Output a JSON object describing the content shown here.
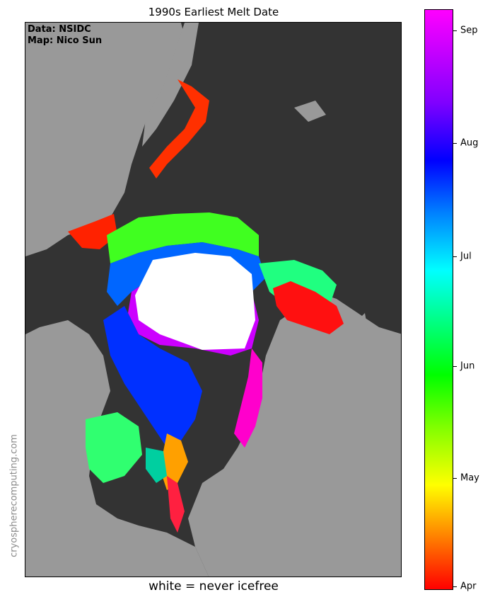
{
  "title": "1990s Earliest Melt Date",
  "credits": {
    "data": "Data: NSIDC",
    "map": "Map: Nico Sun"
  },
  "watermark": "cryospherecomputing.com",
  "footnote": "white = never icefree",
  "colors": {
    "ocean": "#333333",
    "land": "#999999",
    "never_icefree": "#ffffff"
  },
  "colorbar": {
    "ticks": [
      {
        "label": "Sep",
        "fraction": 0.963
      },
      {
        "label": "Aug",
        "fraction": 0.769
      },
      {
        "label": "Jul",
        "fraction": 0.575
      },
      {
        "label": "Jun",
        "fraction": 0.385
      },
      {
        "label": "May",
        "fraction": 0.193
      },
      {
        "label": "Apr",
        "fraction": 0.006
      }
    ]
  }
}
